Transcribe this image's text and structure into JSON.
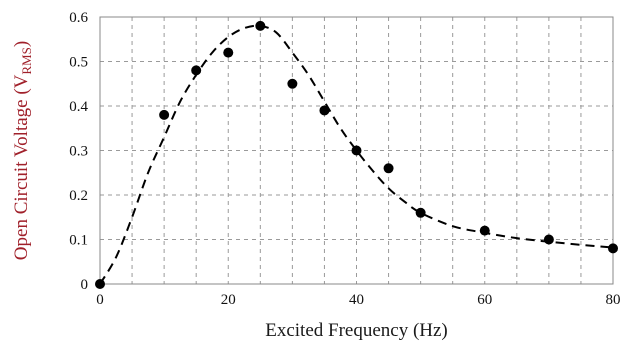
{
  "chart_data": {
    "type": "scatter",
    "xlabel": "Excited Frequency (Hz)",
    "ylabel_prefix": "Open Circuit Voltage (V",
    "ylabel_subscript": "RMS",
    "ylabel_suffix": ")",
    "xlim": [
      0,
      80
    ],
    "ylim": [
      0,
      0.6
    ],
    "x_ticks": [
      "0",
      "20",
      "40",
      "60",
      "80"
    ],
    "y_ticks": [
      "0",
      "0.1",
      "0.2",
      "0.3",
      "0.4",
      "0.5",
      "0.6"
    ],
    "grid": true,
    "x_grid_step": 5,
    "y_grid_step": 0.1,
    "series": [
      {
        "style": "markers",
        "color": "#000000",
        "x": [
          0,
          10,
          15,
          20,
          25,
          30,
          35,
          40,
          45,
          50,
          60,
          70,
          80
        ],
        "y": [
          0,
          0.38,
          0.48,
          0.52,
          0.58,
          0.45,
          0.39,
          0.3,
          0.26,
          0.16,
          0.12,
          0.1,
          0.08
        ]
      },
      {
        "style": "dashed-line",
        "color": "#000000",
        "x": [
          0,
          2.5,
          5,
          7.5,
          10,
          12.5,
          15,
          17.5,
          20,
          22.5,
          25,
          27.5,
          30,
          32.5,
          35,
          37.5,
          40,
          42.5,
          45,
          47.5,
          50,
          55,
          60,
          65,
          70,
          75,
          80
        ],
        "y": [
          0,
          0.06,
          0.15,
          0.25,
          0.33,
          0.41,
          0.47,
          0.52,
          0.555,
          0.575,
          0.58,
          0.565,
          0.52,
          0.47,
          0.41,
          0.35,
          0.3,
          0.255,
          0.215,
          0.185,
          0.16,
          0.13,
          0.115,
          0.103,
          0.095,
          0.088,
          0.082
        ]
      }
    ],
    "colors": {
      "frame": "#888888",
      "grid": "#9a9a9a",
      "ylabel": "#a0202a",
      "xlabel": "#1a1a1a"
    }
  }
}
